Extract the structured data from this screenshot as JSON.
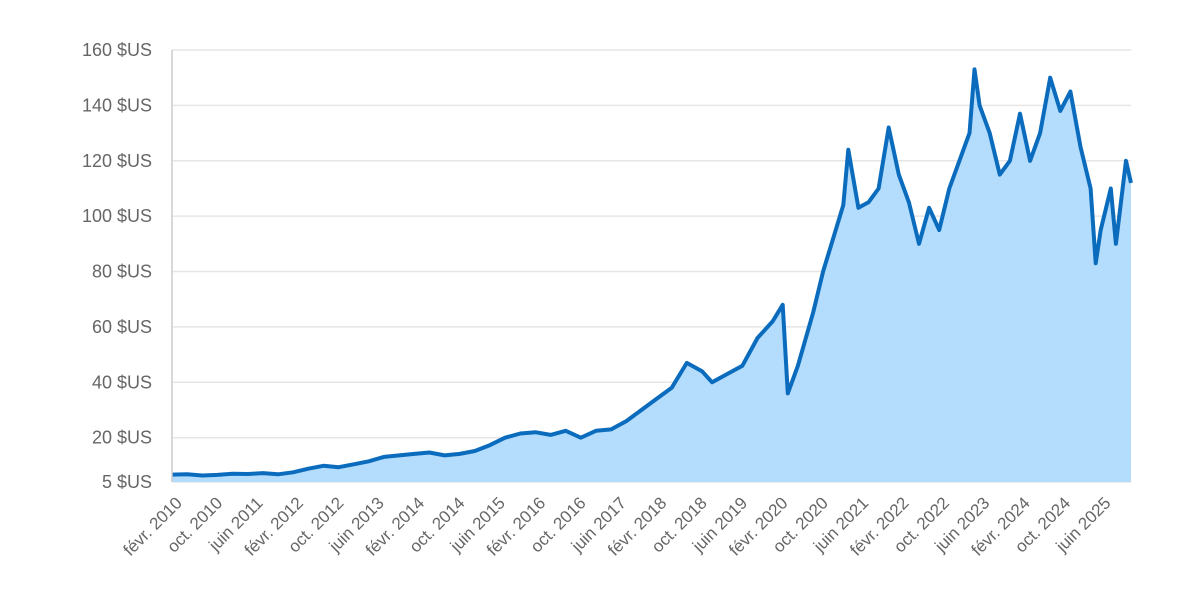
{
  "chart_data": {
    "type": "area",
    "title": "",
    "xlabel": "",
    "ylabel": "",
    "ylim": [
      5,
      160
    ],
    "y_ticks": [
      {
        "value": 5,
        "label": "5 $US"
      },
      {
        "value": 20,
        "label": "20 $US"
      },
      {
        "value": 40,
        "label": "40 $US"
      },
      {
        "value": 60,
        "label": "60 $US"
      },
      {
        "value": 80,
        "label": "80 $US"
      },
      {
        "value": 100,
        "label": "100 $US"
      },
      {
        "value": 120,
        "label": "120 $US"
      },
      {
        "value": 140,
        "label": "140 $US"
      },
      {
        "value": 160,
        "label": "160 $US"
      }
    ],
    "x_range": [
      "2010-01",
      "2025-11"
    ],
    "x_ticks": [
      {
        "date": "2010-02",
        "label": "févr. 2010"
      },
      {
        "date": "2010-10",
        "label": "oct. 2010"
      },
      {
        "date": "2011-06",
        "label": "juin 2011"
      },
      {
        "date": "2012-02",
        "label": "févr. 2012"
      },
      {
        "date": "2012-10",
        "label": "oct. 2012"
      },
      {
        "date": "2013-06",
        "label": "juin 2013"
      },
      {
        "date": "2014-02",
        "label": "févr. 2014"
      },
      {
        "date": "2014-10",
        "label": "oct. 2014"
      },
      {
        "date": "2015-06",
        "label": "juin 2015"
      },
      {
        "date": "2016-02",
        "label": "févr. 2016"
      },
      {
        "date": "2016-10",
        "label": "oct. 2016"
      },
      {
        "date": "2017-06",
        "label": "juin 2017"
      },
      {
        "date": "2018-02",
        "label": "févr. 2018"
      },
      {
        "date": "2018-10",
        "label": "oct. 2018"
      },
      {
        "date": "2019-06",
        "label": "juin 2019"
      },
      {
        "date": "2020-02",
        "label": "févr. 2020"
      },
      {
        "date": "2020-10",
        "label": "oct. 2020"
      },
      {
        "date": "2021-06",
        "label": "juin 2021"
      },
      {
        "date": "2022-02",
        "label": "févr. 2022"
      },
      {
        "date": "2022-10",
        "label": "oct. 2022"
      },
      {
        "date": "2023-06",
        "label": "juin 2023"
      },
      {
        "date": "2024-02",
        "label": "févr. 2024"
      },
      {
        "date": "2024-10",
        "label": "oct. 2024"
      },
      {
        "date": "2025-06",
        "label": "juin 2025"
      }
    ],
    "grid": true,
    "legend": "none",
    "colors": {
      "line": "#0b6cbd",
      "fill": "#b3dcfd",
      "grid": "#e6e6e6",
      "text": "#666666"
    },
    "series": [
      {
        "points": [
          [
            "2010-01",
            7.5
          ],
          [
            "2010-04",
            7.6
          ],
          [
            "2010-07",
            7.2
          ],
          [
            "2010-10",
            7.4
          ],
          [
            "2011-01",
            7.8
          ],
          [
            "2011-04",
            7.7
          ],
          [
            "2011-07",
            8.0
          ],
          [
            "2011-10",
            7.6
          ],
          [
            "2012-01",
            8.3
          ],
          [
            "2012-04",
            9.5
          ],
          [
            "2012-07",
            10.5
          ],
          [
            "2012-10",
            10.0
          ],
          [
            "2013-01",
            11.0
          ],
          [
            "2013-04",
            12.0
          ],
          [
            "2013-07",
            13.5
          ],
          [
            "2013-10",
            14.0
          ],
          [
            "2014-01",
            14.5
          ],
          [
            "2014-04",
            15.0
          ],
          [
            "2014-07",
            14.0
          ],
          [
            "2014-10",
            14.5
          ],
          [
            "2015-01",
            15.5
          ],
          [
            "2015-04",
            17.5
          ],
          [
            "2015-07",
            20.0
          ],
          [
            "2015-10",
            21.5
          ],
          [
            "2016-01",
            22.0
          ],
          [
            "2016-04",
            21.0
          ],
          [
            "2016-07",
            22.5
          ],
          [
            "2016-10",
            20.0
          ],
          [
            "2017-01",
            22.5
          ],
          [
            "2017-04",
            23.0
          ],
          [
            "2017-07",
            26.0
          ],
          [
            "2017-10",
            30.0
          ],
          [
            "2018-01",
            34.0
          ],
          [
            "2018-04",
            38.0
          ],
          [
            "2018-07",
            47.0
          ],
          [
            "2018-10",
            44.0
          ],
          [
            "2018-12",
            40.0
          ],
          [
            "2019-03",
            43.0
          ],
          [
            "2019-06",
            46.0
          ],
          [
            "2019-09",
            56.0
          ],
          [
            "2019-12",
            62.0
          ],
          [
            "2020-02",
            68.0
          ],
          [
            "2020-03",
            36.0
          ],
          [
            "2020-05",
            46.0
          ],
          [
            "2020-08",
            65.0
          ],
          [
            "2020-10",
            80.0
          ],
          [
            "2020-12",
            92.0
          ],
          [
            "2021-02",
            104.0
          ],
          [
            "2021-03",
            124.0
          ],
          [
            "2021-05",
            103.0
          ],
          [
            "2021-07",
            105.0
          ],
          [
            "2021-09",
            110.0
          ],
          [
            "2021-11",
            132.0
          ],
          [
            "2022-01",
            115.0
          ],
          [
            "2022-03",
            105.0
          ],
          [
            "2022-05",
            90.0
          ],
          [
            "2022-07",
            103.0
          ],
          [
            "2022-09",
            95.0
          ],
          [
            "2022-11",
            110.0
          ],
          [
            "2023-01",
            120.0
          ],
          [
            "2023-03",
            130.0
          ],
          [
            "2023-04",
            153.0
          ],
          [
            "2023-05",
            140.0
          ],
          [
            "2023-07",
            130.0
          ],
          [
            "2023-09",
            115.0
          ],
          [
            "2023-11",
            120.0
          ],
          [
            "2024-01",
            137.0
          ],
          [
            "2024-03",
            120.0
          ],
          [
            "2024-05",
            130.0
          ],
          [
            "2024-07",
            150.0
          ],
          [
            "2024-09",
            138.0
          ],
          [
            "2024-11",
            145.0
          ],
          [
            "2025-01",
            125.0
          ],
          [
            "2025-03",
            110.0
          ],
          [
            "2025-04",
            83.0
          ],
          [
            "2025-05",
            95.0
          ],
          [
            "2025-07",
            110.0
          ],
          [
            "2025-08",
            90.0
          ],
          [
            "2025-10",
            120.0
          ],
          [
            "2025-11",
            112.0
          ]
        ]
      }
    ]
  }
}
